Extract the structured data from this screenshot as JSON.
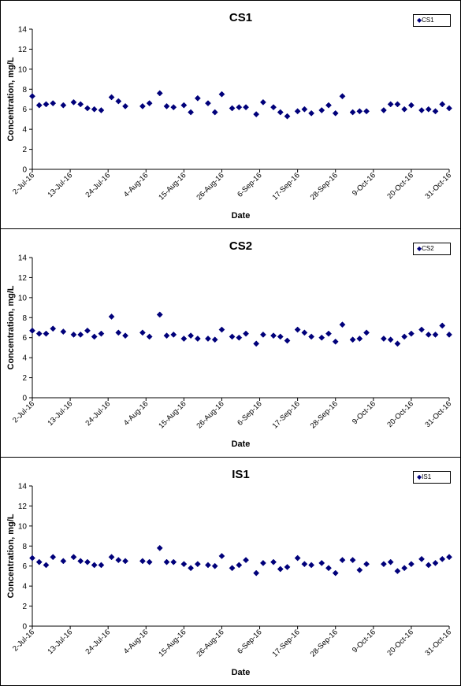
{
  "chart_data": [
    {
      "type": "scatter",
      "title": "CS1",
      "xlabel": "Date",
      "ylabel": "Concentration, mg/L",
      "ylim": [
        0,
        14
      ],
      "yticks": [
        "0",
        "2",
        "4",
        "6",
        "8",
        "10",
        "12",
        "14"
      ],
      "xlim": [
        "2-Jul-16",
        "31-Oct-16"
      ],
      "xticks": [
        "2-Jul-16",
        "13-Jul-16",
        "24-Jul-16",
        "4-Aug-16",
        "15-Aug-16",
        "26-Aug-16",
        "6-Sep-16",
        "17-Sep-16",
        "28-Sep-16",
        "9-Oct-16",
        "20-Oct-16",
        "31-Oct-16"
      ],
      "grid": false,
      "legend_position": "top-right",
      "marker_color": "#00007a",
      "series": [
        {
          "name": "CS1",
          "x": [
            "2-Jul-16",
            "4-Jul-16",
            "6-Jul-16",
            "8-Jul-16",
            "11-Jul-16",
            "14-Jul-16",
            "16-Jul-16",
            "18-Jul-16",
            "20-Jul-16",
            "22-Jul-16",
            "25-Jul-16",
            "27-Jul-16",
            "29-Jul-16",
            "3-Aug-16",
            "5-Aug-16",
            "8-Aug-16",
            "10-Aug-16",
            "12-Aug-16",
            "15-Aug-16",
            "17-Aug-16",
            "19-Aug-16",
            "22-Aug-16",
            "24-Aug-16",
            "26-Aug-16",
            "29-Aug-16",
            "31-Aug-16",
            "2-Sep-16",
            "5-Sep-16",
            "7-Sep-16",
            "10-Sep-16",
            "12-Sep-16",
            "14-Sep-16",
            "17-Sep-16",
            "19-Sep-16",
            "21-Sep-16",
            "24-Sep-16",
            "26-Sep-16",
            "28-Sep-16",
            "30-Sep-16",
            "3-Oct-16",
            "5-Oct-16",
            "7-Oct-16",
            "12-Oct-16",
            "14-Oct-16",
            "16-Oct-16",
            "18-Oct-16",
            "20-Oct-16",
            "23-Oct-16",
            "25-Oct-16",
            "27-Oct-16",
            "29-Oct-16",
            "31-Oct-16"
          ],
          "y": [
            7.3,
            6.4,
            6.5,
            6.6,
            6.4,
            6.7,
            6.5,
            6.1,
            6.0,
            5.9,
            7.2,
            6.8,
            6.3,
            6.3,
            6.6,
            7.6,
            6.3,
            6.2,
            6.4,
            5.7,
            7.1,
            6.6,
            5.7,
            7.5,
            6.1,
            6.2,
            6.2,
            5.5,
            6.7,
            6.2,
            5.7,
            5.3,
            5.8,
            6.0,
            5.6,
            5.9,
            6.4,
            5.6,
            7.3,
            5.7,
            5.8,
            5.8,
            5.9,
            6.5,
            6.5,
            6.0,
            6.4,
            5.9,
            6.0,
            5.8,
            6.5,
            6.1
          ]
        }
      ]
    },
    {
      "type": "scatter",
      "title": "CS2",
      "xlabel": "Date",
      "ylabel": "Concentration, mg/L",
      "ylim": [
        0,
        14
      ],
      "yticks": [
        "0",
        "2",
        "4",
        "6",
        "8",
        "10",
        "12",
        "14"
      ],
      "xlim": [
        "2-Jul-16",
        "31-Oct-16"
      ],
      "xticks": [
        "2-Jul-16",
        "13-Jul-16",
        "24-Jul-16",
        "4-Aug-16",
        "15-Aug-16",
        "26-Aug-16",
        "6-Sep-16",
        "17-Sep-16",
        "28-Sep-16",
        "9-Oct-16",
        "20-Oct-16",
        "31-Oct-16"
      ],
      "grid": false,
      "legend_position": "top-right",
      "marker_color": "#00007a",
      "series": [
        {
          "name": "CS2",
          "x": [
            "2-Jul-16",
            "4-Jul-16",
            "6-Jul-16",
            "8-Jul-16",
            "11-Jul-16",
            "14-Jul-16",
            "16-Jul-16",
            "18-Jul-16",
            "20-Jul-16",
            "22-Jul-16",
            "25-Jul-16",
            "27-Jul-16",
            "29-Jul-16",
            "3-Aug-16",
            "5-Aug-16",
            "8-Aug-16",
            "10-Aug-16",
            "12-Aug-16",
            "15-Aug-16",
            "17-Aug-16",
            "19-Aug-16",
            "22-Aug-16",
            "24-Aug-16",
            "26-Aug-16",
            "29-Aug-16",
            "31-Aug-16",
            "2-Sep-16",
            "5-Sep-16",
            "7-Sep-16",
            "10-Sep-16",
            "12-Sep-16",
            "14-Sep-16",
            "17-Sep-16",
            "19-Sep-16",
            "21-Sep-16",
            "24-Sep-16",
            "26-Sep-16",
            "28-Sep-16",
            "30-Sep-16",
            "3-Oct-16",
            "5-Oct-16",
            "7-Oct-16",
            "12-Oct-16",
            "14-Oct-16",
            "16-Oct-16",
            "18-Oct-16",
            "20-Oct-16",
            "23-Oct-16",
            "25-Oct-16",
            "27-Oct-16",
            "29-Oct-16",
            "31-Oct-16"
          ],
          "y": [
            6.7,
            6.4,
            6.4,
            6.9,
            6.6,
            6.3,
            6.3,
            6.7,
            6.1,
            6.4,
            8.1,
            6.5,
            6.2,
            6.5,
            6.1,
            8.3,
            6.2,
            6.3,
            5.9,
            6.2,
            5.9,
            5.9,
            5.8,
            6.8,
            6.1,
            6.0,
            6.4,
            5.4,
            6.3,
            6.2,
            6.1,
            5.7,
            6.8,
            6.5,
            6.1,
            6.0,
            6.4,
            5.6,
            7.3,
            5.8,
            5.9,
            6.5,
            5.9,
            5.8,
            5.4,
            6.1,
            6.4,
            6.8,
            6.3,
            6.3,
            7.2,
            6.3
          ]
        }
      ]
    },
    {
      "type": "scatter",
      "title": "IS1",
      "xlabel": "Date",
      "ylabel": "Concentration, mg/L",
      "ylim": [
        0,
        14
      ],
      "yticks": [
        "0",
        "2",
        "4",
        "6",
        "8",
        "10",
        "12",
        "14"
      ],
      "xlim": [
        "2-Jul-16",
        "31-Oct-16"
      ],
      "xticks": [
        "2-Jul-16",
        "13-Jul-16",
        "24-Jul-16",
        "4-Aug-16",
        "15-Aug-16",
        "26-Aug-16",
        "6-Sep-16",
        "17-Sep-16",
        "28-Sep-16",
        "9-Oct-16",
        "20-Oct-16",
        "31-Oct-16"
      ],
      "grid": false,
      "legend_position": "top-right",
      "marker_color": "#00007a",
      "series": [
        {
          "name": "IS1",
          "x": [
            "2-Jul-16",
            "4-Jul-16",
            "6-Jul-16",
            "8-Jul-16",
            "11-Jul-16",
            "14-Jul-16",
            "16-Jul-16",
            "18-Jul-16",
            "20-Jul-16",
            "22-Jul-16",
            "25-Jul-16",
            "27-Jul-16",
            "29-Jul-16",
            "3-Aug-16",
            "5-Aug-16",
            "8-Aug-16",
            "10-Aug-16",
            "12-Aug-16",
            "15-Aug-16",
            "17-Aug-16",
            "19-Aug-16",
            "22-Aug-16",
            "24-Aug-16",
            "26-Aug-16",
            "29-Aug-16",
            "31-Aug-16",
            "2-Sep-16",
            "5-Sep-16",
            "7-Sep-16",
            "10-Sep-16",
            "12-Sep-16",
            "14-Sep-16",
            "17-Sep-16",
            "19-Sep-16",
            "21-Sep-16",
            "24-Sep-16",
            "26-Sep-16",
            "28-Sep-16",
            "30-Sep-16",
            "3-Oct-16",
            "5-Oct-16",
            "7-Oct-16",
            "12-Oct-16",
            "14-Oct-16",
            "16-Oct-16",
            "18-Oct-16",
            "20-Oct-16",
            "23-Oct-16",
            "25-Oct-16",
            "27-Oct-16",
            "29-Oct-16",
            "31-Oct-16"
          ],
          "y": [
            6.8,
            6.4,
            6.1,
            6.9,
            6.5,
            6.9,
            6.5,
            6.4,
            6.1,
            6.1,
            6.9,
            6.6,
            6.5,
            6.5,
            6.4,
            7.8,
            6.4,
            6.4,
            6.2,
            5.8,
            6.2,
            6.1,
            6.0,
            7.0,
            5.8,
            6.1,
            6.6,
            5.3,
            6.3,
            6.4,
            5.7,
            5.9,
            6.8,
            6.2,
            6.1,
            6.3,
            5.8,
            5.3,
            6.6,
            6.6,
            5.6,
            6.2,
            6.2,
            6.4,
            5.5,
            5.8,
            6.2,
            6.7,
            6.1,
            6.3,
            6.7,
            6.9
          ]
        }
      ]
    }
  ]
}
